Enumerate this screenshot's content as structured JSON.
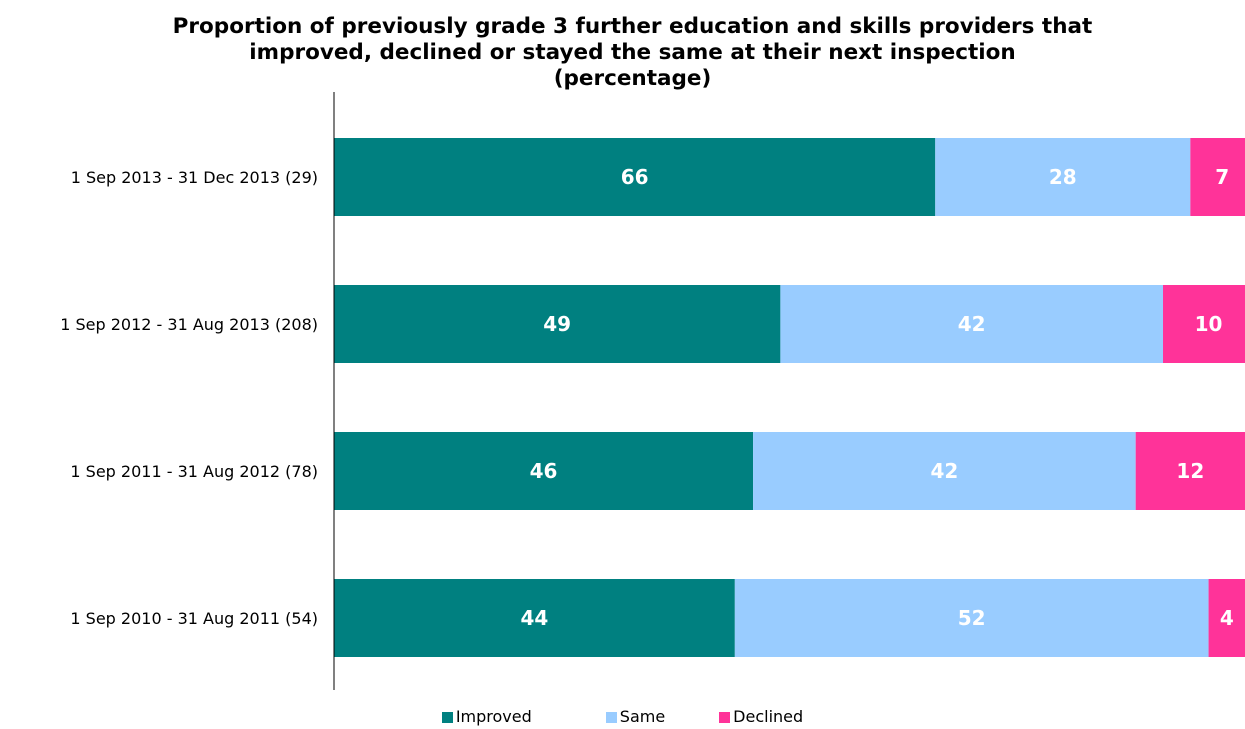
{
  "chart_data": {
    "type": "bar",
    "orientation": "horizontal",
    "stacked": true,
    "title_lines": [
      "Proportion of previously grade 3 further education and skills providers that",
      "improved, declined or stayed the same at their next inspection",
      "(percentage)"
    ],
    "categories": [
      "1 Sep 2013 - 31 Dec 2013 (29)",
      "1 Sep 2012 - 31 Aug 2013 (208)",
      "1 Sep 2011 - 31 Aug 2012 (78)",
      "1 Sep 2010 - 31 Aug 2011 (54)"
    ],
    "series": [
      {
        "name": "Improved",
        "color": "#008080",
        "values": [
          66,
          49,
          46,
          44
        ]
      },
      {
        "name": "Same",
        "color": "#99ccff",
        "values": [
          28,
          42,
          42,
          52
        ]
      },
      {
        "name": "Declined",
        "color": "#ff3399",
        "values": [
          7,
          10,
          12,
          4
        ]
      }
    ],
    "xlim": [
      0,
      100
    ],
    "data_labels": true,
    "grid": false,
    "legend_position": "bottom"
  }
}
